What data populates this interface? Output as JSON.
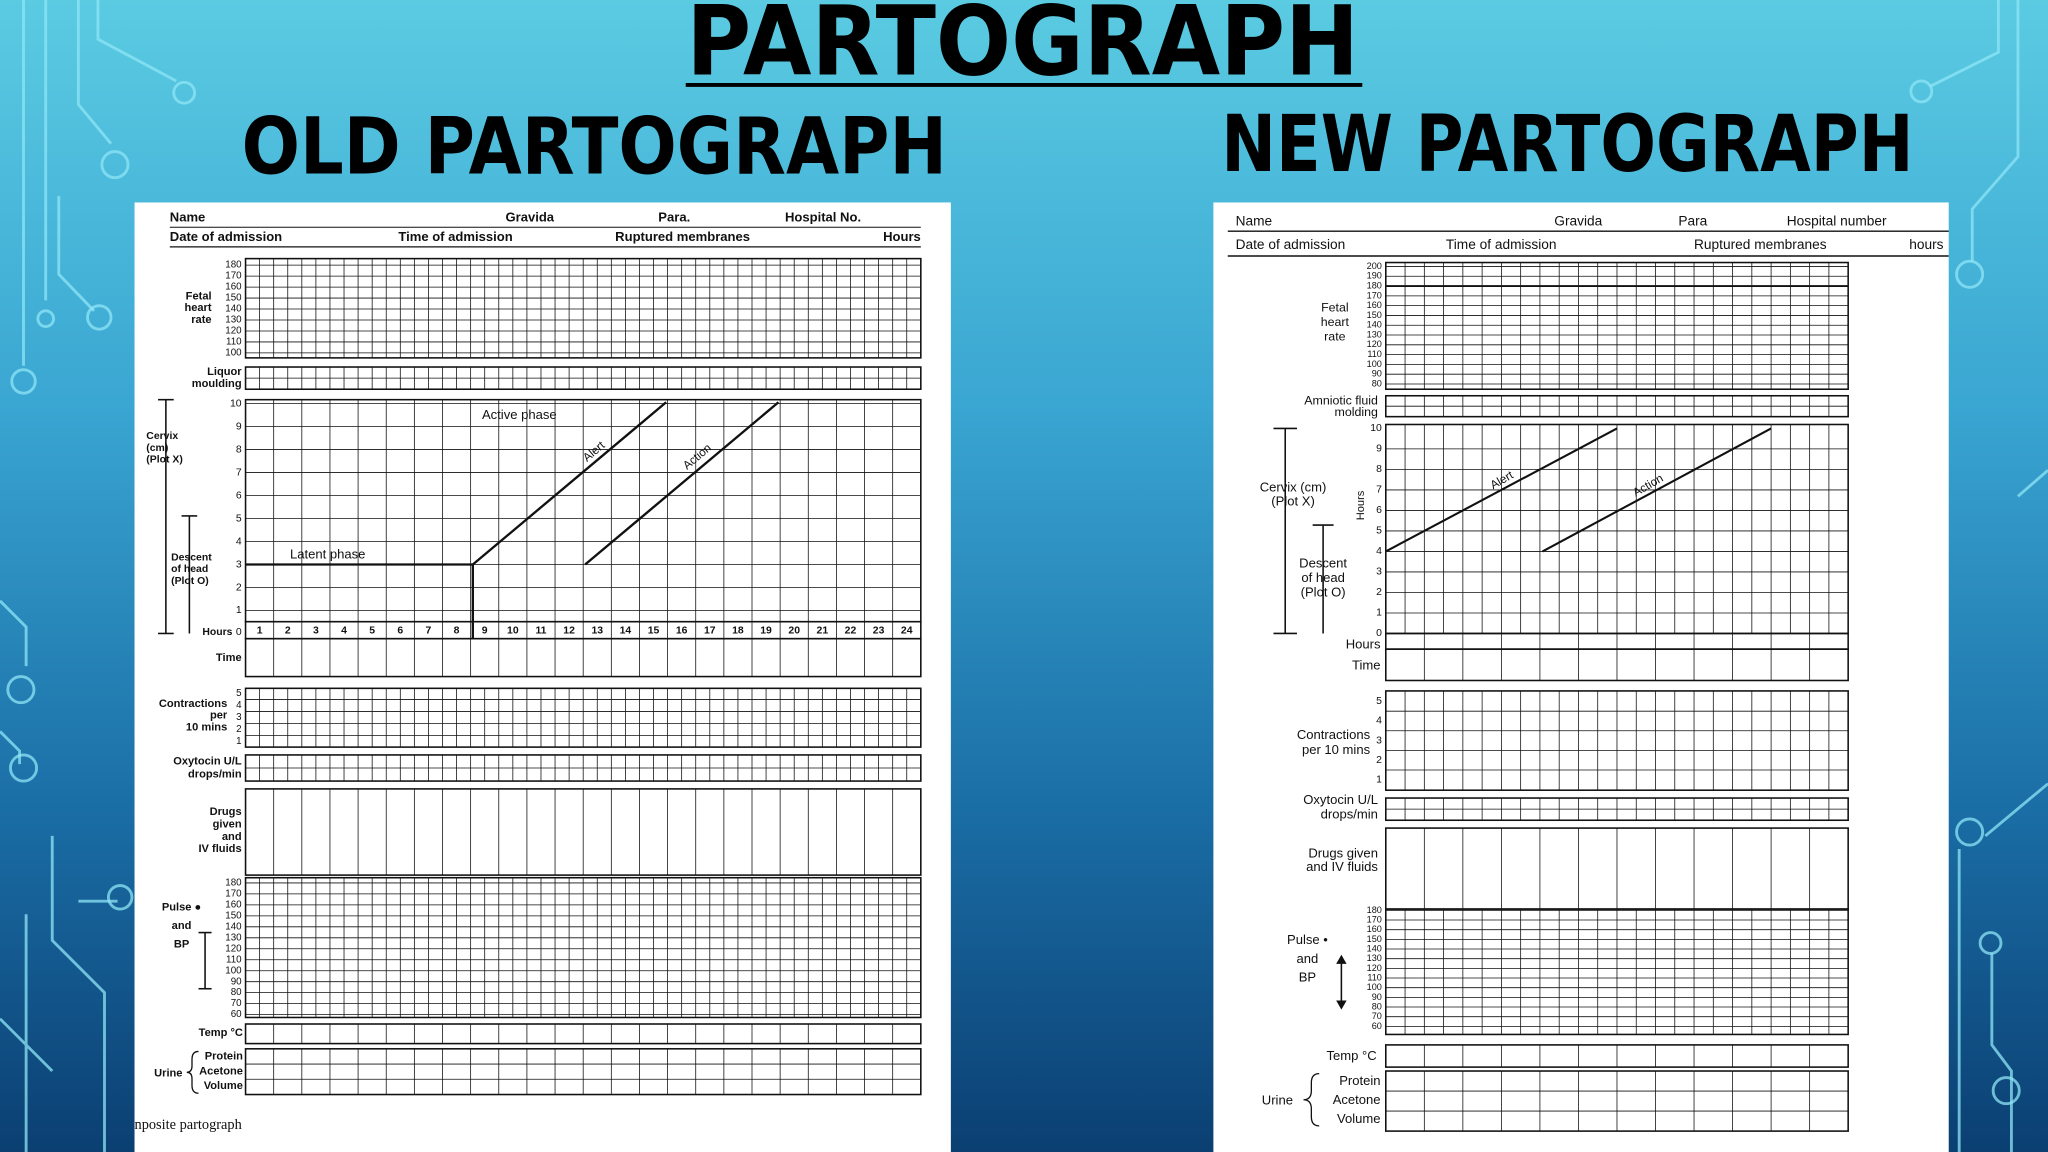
{
  "title": "PARTOGRAPH",
  "old_partograph": {
    "heading": "OLD PARTOGRAPH",
    "header": {
      "name": "Name",
      "gravida": "Gravida",
      "para": "Para.",
      "hospital": "Hospital No.",
      "admission_date": "Date of admission",
      "admission_time": "Time of admission",
      "ruptured_membranes": "Ruptured membranes",
      "hours": "Hours"
    },
    "fetal_heart_rate": {
      "label": [
        "Fetal",
        "heart",
        "rate"
      ],
      "ticks": [
        180,
        170,
        160,
        150,
        140,
        130,
        120,
        110,
        100
      ]
    },
    "liquor": {
      "label": [
        "Liquor",
        "moulding"
      ]
    },
    "cervix": {
      "label": [
        "Cervix",
        "(cm)",
        "(Plot X)"
      ],
      "descent_label": [
        "Descent",
        "of head",
        "(Plot O)"
      ],
      "ticks": [
        10,
        9,
        8,
        7,
        6,
        5,
        4,
        3,
        2,
        1,
        0
      ],
      "hours_label": "Hours",
      "hours": [
        1,
        2,
        3,
        4,
        5,
        6,
        7,
        8,
        9,
        10,
        11,
        12,
        13,
        14,
        15,
        16,
        17,
        18,
        19,
        20,
        21,
        22,
        23,
        24
      ],
      "time_label": "Time",
      "active_phase": "Active phase",
      "latent_phase": "Latent phase",
      "alert": "Alert",
      "action": "Action"
    },
    "contractions": {
      "label": [
        "Contractions",
        "per",
        "10 mins"
      ],
      "ticks": [
        5,
        4,
        3,
        2,
        1
      ]
    },
    "oxytocin": {
      "label": [
        "Oxytocin U/L",
        "drops/min"
      ]
    },
    "drugs": {
      "label": [
        "Drugs",
        "given",
        "and",
        "IV fluids"
      ]
    },
    "pulse_bp": {
      "label": [
        "Pulse ●",
        "and",
        "BP"
      ],
      "ticks": [
        180,
        170,
        160,
        150,
        140,
        130,
        120,
        110,
        100,
        90,
        80,
        70,
        60
      ]
    },
    "temperature": {
      "label": "Temp °C"
    },
    "urine": {
      "label": "Urine",
      "rows": [
        "Protein",
        "Acetone",
        "Volume"
      ]
    },
    "caption": "nposite partograph"
  },
  "new_partograph": {
    "heading": "NEW PARTOGRAPH",
    "header": {
      "name": "Name",
      "gravida": "Gravida",
      "para": "Para",
      "hospital": "Hospital number",
      "admission_date": "Date of admission",
      "admission_time": "Time of admission",
      "ruptured_membranes": "Ruptured membranes",
      "hours": "hours"
    },
    "fetal_heart_rate": {
      "label": [
        "Fetal",
        "heart",
        "rate"
      ],
      "ticks": [
        200,
        190,
        180,
        170,
        160,
        150,
        140,
        130,
        120,
        110,
        100,
        90,
        80
      ]
    },
    "amniotic_fluid": {
      "label": [
        "Amniotic fluid",
        "molding"
      ]
    },
    "cervix": {
      "label": [
        "Cervix (cm)",
        "(Plot X)"
      ],
      "descent_label": [
        "Descent",
        "of head",
        "(Plot O)"
      ],
      "axis_label": "Hours",
      "ticks": [
        10,
        9,
        8,
        7,
        6,
        5,
        4,
        3,
        2,
        1,
        0
      ],
      "hours_label": "Hours",
      "time_label": "Time",
      "alert": "Alert",
      "action": "Action"
    },
    "contractions": {
      "label": [
        "Contractions",
        "per 10 mins"
      ],
      "ticks": [
        5,
        4,
        3,
        2,
        1
      ]
    },
    "oxytocin": {
      "label": [
        "Oxytocin U/L",
        "drops/min"
      ]
    },
    "drugs": {
      "label": [
        "Drugs given",
        "and IV fluids"
      ]
    },
    "pulse_bp": {
      "label": [
        "Pulse •",
        "and",
        "BP"
      ],
      "ticks": [
        180,
        170,
        160,
        150,
        140,
        130,
        120,
        110,
        100,
        90,
        80,
        70,
        60
      ]
    },
    "temperature": {
      "label": "Temp °C"
    },
    "urine": {
      "label": "Urine",
      "rows": [
        "Protein",
        "Acetone",
        "Volume"
      ]
    }
  }
}
